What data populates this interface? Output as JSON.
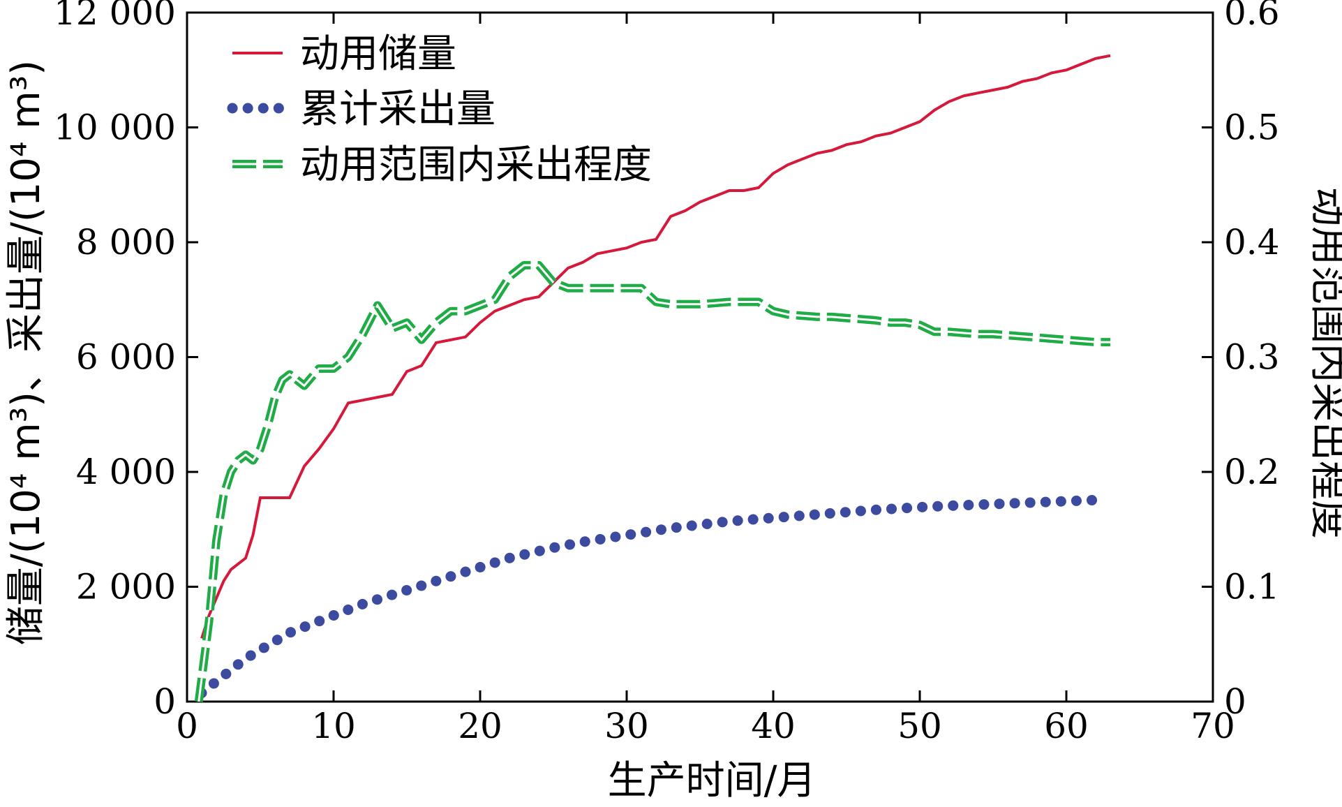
{
  "chart_data": {
    "type": "line",
    "xlabel": "生产时间/月",
    "ylabel_left": "储量/(10⁴ m³)、采出量/(10⁴ m³)",
    "ylabel_right": "动用范围内采出程度",
    "xlim": [
      0,
      70
    ],
    "ylim_left": [
      0,
      12000
    ],
    "ylim_right": [
      0,
      0.6
    ],
    "x_ticks": [
      0,
      10,
      20,
      30,
      40,
      50,
      60,
      70
    ],
    "x_tick_labels": [
      "0",
      "10",
      "20",
      "30",
      "40",
      "50",
      "60",
      "70"
    ],
    "y_left_ticks": [
      0,
      2000,
      4000,
      6000,
      8000,
      10000,
      12000
    ],
    "y_left_tick_labels": [
      "0",
      "2 000",
      "4 000",
      "6 000",
      "8 000",
      "10 000",
      "12 000"
    ],
    "y_right_ticks": [
      0,
      0.1,
      0.2,
      0.3,
      0.4,
      0.5,
      0.6
    ],
    "y_right_tick_labels": [
      "0",
      "0.1",
      "0.2",
      "0.3",
      "0.4",
      "0.5",
      "0.6"
    ],
    "legend_position": "top-left",
    "series": [
      {
        "name": "动用储量",
        "axis": "left",
        "style": "solid",
        "color": "#d6193a",
        "x": [
          1,
          1.5,
          2,
          2.5,
          3,
          4,
          4.5,
          5,
          6,
          7,
          8,
          9,
          10,
          11,
          12,
          13,
          14,
          15,
          16,
          17,
          18,
          19,
          20,
          21,
          22,
          23,
          24,
          25,
          26,
          27,
          28,
          29,
          30,
          31,
          32,
          33,
          34,
          35,
          36,
          37,
          38,
          39,
          40,
          41,
          42,
          43,
          44,
          45,
          46,
          47,
          48,
          49,
          50,
          51,
          52,
          53,
          54,
          55,
          56,
          57,
          58,
          59,
          60,
          61,
          62,
          63
        ],
        "y": [
          1100,
          1500,
          1800,
          2100,
          2300,
          2500,
          2900,
          3550,
          3550,
          3550,
          4100,
          4400,
          4750,
          5200,
          5250,
          5300,
          5350,
          5750,
          5850,
          6250,
          6300,
          6350,
          6600,
          6800,
          6900,
          7000,
          7050,
          7300,
          7550,
          7650,
          7800,
          7850,
          7900,
          8000,
          8050,
          8450,
          8550,
          8700,
          8800,
          8900,
          8900,
          8950,
          9200,
          9350,
          9450,
          9550,
          9600,
          9700,
          9750,
          9850,
          9900,
          10000,
          10100,
          10300,
          10450,
          10550,
          10600,
          10650,
          10700,
          10800,
          10850,
          10950,
          11000,
          11100,
          11200,
          11250
        ]
      },
      {
        "name": "累计采出量",
        "axis": "left",
        "style": "dotted",
        "color": "#3c4ba0",
        "x": [
          1,
          2,
          3,
          4,
          5,
          6,
          7,
          8,
          9,
          10,
          11,
          12,
          13,
          14,
          15,
          16,
          17,
          18,
          19,
          20,
          21,
          22,
          23,
          24,
          25,
          26,
          27,
          28,
          29,
          30,
          31,
          32,
          33,
          34,
          35,
          36,
          37,
          38,
          39,
          40,
          41,
          42,
          43,
          44,
          45,
          46,
          47,
          48,
          49,
          50,
          51,
          52,
          53,
          54,
          55,
          56,
          57,
          58,
          59,
          60,
          61,
          62
        ],
        "y": [
          150,
          350,
          550,
          750,
          900,
          1050,
          1200,
          1300,
          1400,
          1500,
          1600,
          1700,
          1780,
          1860,
          1940,
          2020,
          2100,
          2180,
          2260,
          2340,
          2420,
          2500,
          2560,
          2620,
          2680,
          2730,
          2780,
          2820,
          2860,
          2900,
          2940,
          2980,
          3020,
          3050,
          3080,
          3110,
          3140,
          3160,
          3180,
          3200,
          3220,
          3240,
          3260,
          3280,
          3300,
          3320,
          3340,
          3355,
          3370,
          3385,
          3400,
          3410,
          3420,
          3430,
          3440,
          3450,
          3460,
          3470,
          3480,
          3490,
          3500,
          3510
        ]
      },
      {
        "name": "动用范围内采出程度",
        "axis": "right",
        "style": "dashed",
        "color": "#1fab46",
        "x": [
          0.8,
          1.5,
          2,
          2.5,
          3,
          3.5,
          4,
          4.5,
          5,
          5.5,
          6,
          6.5,
          7,
          8,
          9,
          10,
          11,
          12,
          13,
          14,
          15,
          16,
          17,
          18,
          19,
          20,
          21,
          22,
          23,
          24,
          25,
          26,
          27,
          28,
          29,
          30,
          31,
          32,
          33,
          34,
          35,
          36,
          37,
          38,
          39,
          40,
          41,
          42,
          43,
          44,
          45,
          46,
          47,
          48,
          49,
          50,
          51,
          52,
          53,
          54,
          55,
          56,
          57,
          58,
          59,
          60,
          61,
          62,
          63
        ],
        "y": [
          0.0,
          0.07,
          0.14,
          0.18,
          0.2,
          0.21,
          0.215,
          0.21,
          0.22,
          0.24,
          0.265,
          0.28,
          0.285,
          0.275,
          0.29,
          0.29,
          0.3,
          0.32,
          0.345,
          0.325,
          0.33,
          0.315,
          0.33,
          0.34,
          0.34,
          0.345,
          0.35,
          0.37,
          0.38,
          0.38,
          0.365,
          0.36,
          0.36,
          0.36,
          0.36,
          0.36,
          0.36,
          0.348,
          0.346,
          0.346,
          0.346,
          0.347,
          0.348,
          0.348,
          0.348,
          0.34,
          0.337,
          0.336,
          0.335,
          0.335,
          0.334,
          0.333,
          0.332,
          0.33,
          0.33,
          0.328,
          0.322,
          0.322,
          0.321,
          0.32,
          0.32,
          0.319,
          0.318,
          0.317,
          0.316,
          0.315,
          0.314,
          0.313,
          0.313
        ]
      }
    ]
  }
}
